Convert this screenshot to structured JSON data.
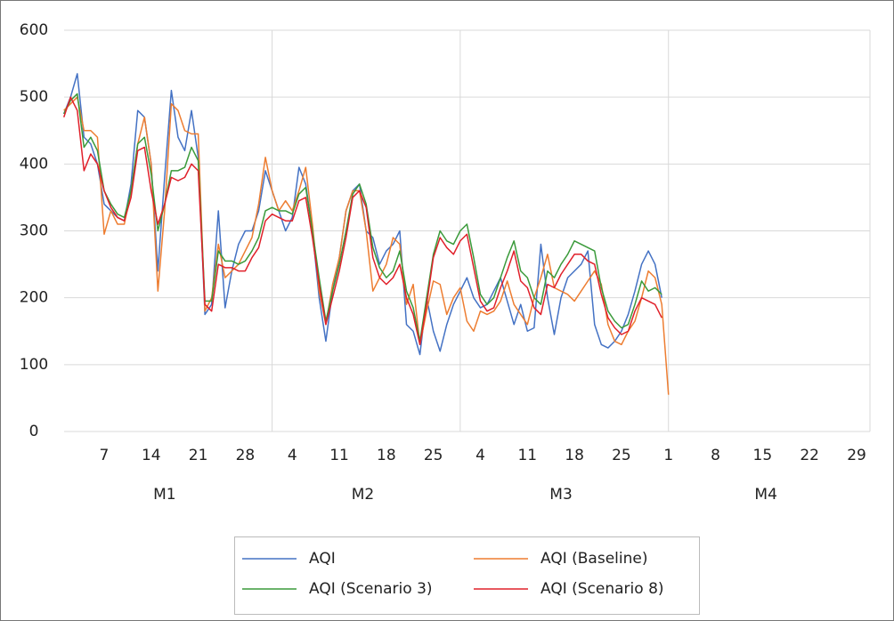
{
  "chart_data": {
    "type": "line",
    "categories": [
      null,
      null,
      null,
      null,
      null,
      null,
      "7",
      null,
      null,
      null,
      null,
      null,
      null,
      "14",
      null,
      null,
      null,
      null,
      null,
      null,
      "21",
      null,
      null,
      null,
      null,
      null,
      null,
      "28",
      null,
      null,
      null,
      null,
      null,
      null,
      "4",
      null,
      null,
      null,
      null,
      null,
      null,
      "11",
      null,
      null,
      null,
      null,
      null,
      null,
      "18",
      null,
      null,
      null,
      null,
      null,
      null,
      "25",
      null,
      null,
      null,
      null,
      null,
      null,
      "4",
      null,
      null,
      null,
      null,
      null,
      null,
      "11",
      null,
      null,
      null,
      null,
      null,
      null,
      "18",
      null,
      null,
      null,
      null,
      null,
      null,
      "25",
      null,
      null,
      null,
      null,
      null,
      null,
      "1",
      null,
      null,
      null,
      null,
      null,
      null,
      "8",
      null,
      null,
      null,
      null,
      null,
      null,
      "15",
      null,
      null,
      null,
      null,
      null,
      null,
      "22",
      null,
      null,
      null,
      null,
      null,
      null,
      "29",
      null
    ],
    "groups": [
      {
        "label": "M1",
        "size": 31
      },
      {
        "label": "M2",
        "size": 28
      },
      {
        "label": "M3",
        "size": 31
      },
      {
        "label": "M4",
        "size": 30
      }
    ],
    "ylim": [
      0,
      600
    ],
    "yticks": [
      0,
      100,
      200,
      300,
      400,
      500,
      600
    ],
    "grid": true,
    "series": [
      {
        "name": "AQI",
        "color": "#4472c4",
        "values": [
          475,
          500,
          535,
          440,
          430,
          400,
          340,
          330,
          320,
          315,
          370,
          480,
          470,
          400,
          240,
          380,
          510,
          440,
          420,
          480,
          410,
          175,
          190,
          330,
          185,
          240,
          280,
          300,
          300,
          330,
          390,
          360,
          330,
          300,
          320,
          395,
          370,
          300,
          200,
          135,
          210,
          260,
          330,
          360,
          370,
          300,
          290,
          250,
          270,
          280,
          300,
          160,
          150,
          115,
          200,
          150,
          120,
          160,
          190,
          210,
          230,
          200,
          185,
          190,
          210,
          230,
          195,
          160,
          190,
          150,
          155,
          280,
          200,
          145,
          200,
          230,
          240,
          250,
          270,
          160,
          130,
          125,
          135,
          150,
          175,
          210,
          250,
          270,
          250,
          200,
          null,
          null,
          null,
          null,
          null,
          null,
          null,
          null,
          null,
          null,
          null,
          null,
          null,
          null,
          null,
          null,
          null,
          null,
          null,
          null,
          null,
          null,
          null,
          null,
          null,
          null,
          null,
          null,
          null,
          null
        ]
      },
      {
        "name": "AQI (Baseline)",
        "color": "#ed7d31",
        "values": [
          480,
          490,
          500,
          450,
          450,
          440,
          295,
          330,
          310,
          310,
          360,
          430,
          470,
          400,
          210,
          330,
          490,
          480,
          450,
          445,
          445,
          180,
          200,
          280,
          230,
          240,
          250,
          270,
          290,
          340,
          410,
          360,
          330,
          345,
          330,
          360,
          395,
          310,
          210,
          160,
          220,
          260,
          330,
          360,
          360,
          300,
          210,
          230,
          250,
          290,
          280,
          190,
          220,
          130,
          180,
          225,
          220,
          175,
          200,
          215,
          165,
          150,
          180,
          175,
          180,
          195,
          225,
          190,
          175,
          160,
          200,
          230,
          265,
          215,
          210,
          205,
          195,
          210,
          225,
          240,
          220,
          160,
          135,
          130,
          150,
          165,
          200,
          240,
          230,
          190,
          55,
          null,
          null,
          null,
          null,
          null,
          null,
          null,
          null,
          null,
          null,
          null,
          null,
          null,
          null,
          null,
          null,
          null,
          null,
          null,
          null,
          null,
          null,
          null,
          null,
          null,
          null,
          null,
          null,
          null
        ]
      },
      {
        "name": "AQI (Scenario 3)",
        "color": "#3a9a3a",
        "values": [
          475,
          495,
          505,
          425,
          440,
          420,
          360,
          340,
          325,
          320,
          360,
          430,
          440,
          385,
          300,
          340,
          390,
          390,
          395,
          425,
          405,
          195,
          195,
          270,
          255,
          255,
          250,
          255,
          270,
          290,
          330,
          335,
          330,
          330,
          325,
          355,
          365,
          300,
          230,
          165,
          210,
          250,
          300,
          355,
          370,
          340,
          275,
          245,
          230,
          240,
          270,
          210,
          185,
          135,
          200,
          265,
          300,
          285,
          280,
          300,
          310,
          260,
          205,
          190,
          200,
          230,
          260,
          285,
          240,
          230,
          200,
          190,
          240,
          230,
          250,
          265,
          285,
          280,
          275,
          270,
          215,
          180,
          165,
          155,
          160,
          190,
          225,
          210,
          215,
          205,
          null,
          null,
          null,
          null,
          null,
          null,
          null,
          null,
          null,
          null,
          null,
          null,
          null,
          null,
          null,
          null,
          null,
          null,
          null,
          null,
          null,
          null,
          null,
          null,
          null,
          null,
          null,
          null,
          null,
          null
        ]
      },
      {
        "name": "AQI (Scenario 8)",
        "color": "#e0202a",
        "values": [
          470,
          500,
          480,
          390,
          415,
          400,
          360,
          335,
          320,
          315,
          350,
          420,
          425,
          360,
          310,
          340,
          380,
          375,
          380,
          400,
          390,
          190,
          180,
          250,
          245,
          245,
          240,
          240,
          260,
          275,
          315,
          325,
          320,
          315,
          315,
          345,
          350,
          290,
          220,
          160,
          200,
          240,
          290,
          350,
          360,
          335,
          260,
          230,
          220,
          230,
          250,
          200,
          175,
          130,
          190,
          260,
          290,
          275,
          265,
          285,
          295,
          245,
          195,
          180,
          185,
          215,
          240,
          270,
          225,
          215,
          185,
          175,
          220,
          215,
          235,
          250,
          265,
          265,
          255,
          250,
          205,
          170,
          155,
          145,
          150,
          180,
          200,
          195,
          190,
          170,
          null,
          null,
          null,
          null,
          null,
          null,
          null,
          null,
          null,
          null,
          null,
          null,
          null,
          null,
          null,
          null,
          null,
          null,
          null,
          null,
          null,
          null,
          null,
          null,
          null,
          null,
          null,
          null,
          null,
          null
        ]
      }
    ]
  }
}
